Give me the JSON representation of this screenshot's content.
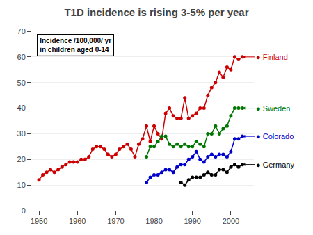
{
  "chart_data": {
    "type": "line",
    "title": "T1D incidence is rising 3-5% per year",
    "annotations": [
      "Incidence /100,000/ yr\nin children aged 0-14"
    ],
    "xlim": [
      1948,
      2006
    ],
    "xticks": [
      1950,
      1960,
      1970,
      1980,
      1990,
      2000
    ],
    "ylim": [
      0,
      70
    ],
    "yticks": [
      0,
      10,
      20,
      30,
      40,
      50,
      60,
      70
    ],
    "grid": "y",
    "series": [
      {
        "name": "● Finland",
        "color": "#cc0000",
        "marker": "circle",
        "line_style": "solid",
        "x": [
          1950,
          1951,
          1952,
          1953,
          1954,
          1955,
          1956,
          1957,
          1958,
          1959,
          1960,
          1961,
          1962,
          1963,
          1964,
          1965,
          1966,
          1967,
          1968,
          1969,
          1970,
          1971,
          1972,
          1973,
          1974,
          1975,
          1976,
          1977,
          1978,
          1979,
          1980,
          1981,
          1982,
          1983,
          1984,
          1985,
          1986,
          1987,
          1988,
          1989,
          1990,
          1991,
          1992,
          1993,
          1994,
          1995,
          1996,
          1997,
          1998,
          1999,
          2000,
          2001,
          2002,
          2003
        ],
        "values": [
          12,
          14,
          15,
          16,
          15,
          16,
          17,
          18,
          19,
          19,
          19,
          20,
          20,
          21,
          24,
          25,
          25,
          24,
          22,
          21,
          22,
          24,
          25,
          26,
          24,
          21,
          26,
          28,
          33,
          27,
          33,
          30,
          28,
          38,
          40,
          37,
          36,
          36,
          44,
          36,
          37,
          38,
          40,
          40,
          45,
          48,
          50,
          54,
          52,
          56,
          55,
          60,
          59,
          60
        ]
      },
      {
        "name": "● Sweden",
        "color": "#007700",
        "marker": "circle",
        "line_style": "solid",
        "x": [
          1978,
          1979,
          1980,
          1981,
          1982,
          1983,
          1984,
          1985,
          1986,
          1987,
          1988,
          1989,
          1990,
          1991,
          1992,
          1993,
          1994,
          1995,
          1996,
          1997,
          1998,
          1999,
          2000,
          2001,
          2002,
          2003
        ],
        "values": [
          21,
          25,
          25,
          27,
          29,
          29,
          26,
          25,
          26,
          25,
          26,
          25,
          25,
          27,
          26,
          25,
          30,
          30,
          33,
          30,
          32,
          33,
          37,
          40,
          40,
          40
        ]
      },
      {
        "name": "● Colorado",
        "color": "#0000cc",
        "marker": "circle",
        "line_style": "solid",
        "x": [
          1978,
          1979,
          1980,
          1981,
          1982,
          1983,
          1984,
          1985,
          1986,
          1987,
          1988,
          1989,
          1990,
          1991,
          1992,
          1993,
          1994,
          1995,
          1996,
          1997,
          1998,
          1999,
          2000,
          2001,
          2002,
          2003
        ],
        "values": [
          11,
          13,
          14,
          14,
          15,
          16,
          16,
          15,
          17,
          18,
          18,
          20,
          21,
          23,
          20,
          19,
          21,
          22,
          21,
          22,
          22,
          21,
          23,
          28,
          28,
          29
        ]
      },
      {
        "name": "● Germany",
        "color": "#000000",
        "marker": "circle",
        "line_style": "solid",
        "x": [
          1987,
          1988,
          1989,
          1990,
          1991,
          1992,
          1993,
          1994,
          1995,
          1996,
          1997,
          1998,
          1999,
          2000,
          2001,
          2002,
          2003
        ],
        "values": [
          11,
          10,
          12,
          13,
          13,
          13,
          14,
          15,
          14,
          14,
          16,
          16,
          15,
          17,
          18,
          17,
          18
        ]
      }
    ]
  }
}
